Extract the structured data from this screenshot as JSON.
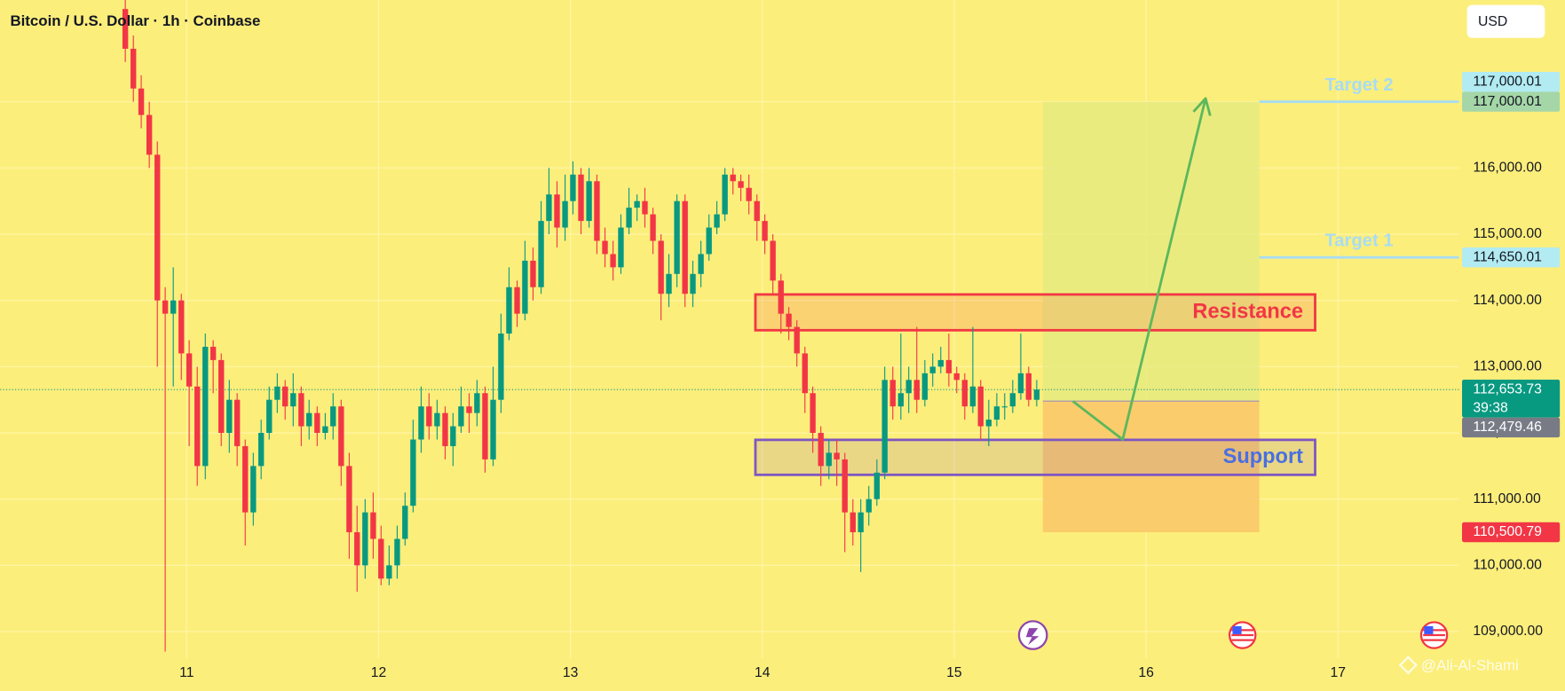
{
  "header": {
    "title": "Bitcoin / U.S. Dollar · 1h · Coinbase",
    "currency_button": "USD",
    "watermark": "@Ali-Al-Shami"
  },
  "chart_data": {
    "type": "candlestick",
    "x": [
      10.68,
      10.722,
      10.763,
      10.805,
      10.847,
      10.888,
      10.93,
      10.972,
      11.013,
      11.055,
      11.097,
      11.138,
      11.18,
      11.222,
      11.263,
      11.305,
      11.347,
      11.388,
      11.43,
      11.472,
      11.513,
      11.555,
      11.597,
      11.638,
      11.68,
      11.722,
      11.763,
      11.805,
      11.847,
      11.888,
      11.93,
      11.972,
      12.013,
      12.055,
      12.097,
      12.138,
      12.18,
      12.222,
      12.263,
      12.305,
      12.347,
      12.388,
      12.43,
      12.472,
      12.513,
      12.555,
      12.597,
      12.638,
      12.68,
      12.722,
      12.763,
      12.805,
      12.847,
      12.888,
      12.93,
      12.972,
      13.013,
      13.055,
      13.097,
      13.138,
      13.18,
      13.222,
      13.263,
      13.305,
      13.347,
      13.388,
      13.43,
      13.472,
      13.513,
      13.555,
      13.597,
      13.638,
      13.68,
      13.722,
      13.763,
      13.805,
      13.847,
      13.888,
      13.93,
      13.972,
      14.013,
      14.055,
      14.097,
      14.138,
      14.18,
      14.222,
      14.263,
      14.305,
      14.347,
      14.388,
      14.43,
      14.472,
      14.513,
      14.555,
      14.597,
      14.638,
      14.68,
      14.722,
      14.763,
      14.805,
      14.847,
      14.888,
      14.93,
      14.972,
      15.013,
      15.055,
      15.097,
      15.138,
      15.18,
      15.222,
      15.263,
      15.305,
      15.347,
      15.388,
      15.43
    ],
    "open": [
      118400,
      117800,
      117200,
      116800,
      116200,
      114000,
      113800,
      114000,
      113200,
      112700,
      111500,
      113300,
      113100,
      112000,
      112500,
      111800,
      110800,
      111500,
      112000,
      112500,
      112700,
      112400,
      112600,
      112100,
      112300,
      112000,
      112100,
      112400,
      111500,
      110500,
      110000,
      110800,
      110400,
      109800,
      110000,
      110400,
      110900,
      111900,
      112400,
      112100,
      112300,
      111800,
      112100,
      112400,
      112300,
      112600,
      111600,
      112500,
      113500,
      114200,
      113800,
      114600,
      114200,
      115200,
      115600,
      115100,
      115500,
      115900,
      115200,
      115800,
      114900,
      114700,
      114500,
      115100,
      115400,
      115500,
      115300,
      114900,
      114100,
      114400,
      115500,
      114100,
      114400,
      114700,
      115100,
      115300,
      115900,
      115800,
      115700,
      115500,
      115200,
      114900,
      114300,
      113800,
      113600,
      113200,
      112600,
      112000,
      111500,
      111700,
      111600,
      110800,
      110500,
      110800,
      111000,
      111400,
      112800,
      112400,
      112600,
      112800,
      112500,
      112900,
      113000,
      113100,
      112900,
      112800,
      112400,
      112700,
      112100,
      112200,
      112400,
      112400,
      112600,
      112900,
      112500
    ],
    "high": [
      118600,
      118000,
      117400,
      117000,
      116400,
      114200,
      114500,
      114100,
      113400,
      113000,
      113500,
      113400,
      113200,
      112800,
      112600,
      111900,
      111700,
      112200,
      112700,
      112900,
      112800,
      112900,
      112700,
      112500,
      112400,
      112300,
      112600,
      112500,
      111700,
      110900,
      111000,
      111100,
      110600,
      110300,
      110600,
      111100,
      112200,
      112700,
      112600,
      112500,
      112400,
      112300,
      112700,
      112600,
      112800,
      112700,
      113000,
      113800,
      114500,
      114300,
      114900,
      114800,
      115500,
      116000,
      115800,
      115900,
      116100,
      116000,
      116000,
      115900,
      115100,
      114900,
      115300,
      115700,
      115600,
      115700,
      115400,
      115000,
      114700,
      115600,
      115600,
      114600,
      114900,
      115300,
      115500,
      116000,
      116000,
      115900,
      115900,
      115600,
      115300,
      115000,
      114400,
      113900,
      113700,
      113300,
      112700,
      112100,
      111900,
      111900,
      111700,
      111000,
      111000,
      111200,
      111600,
      113000,
      113000,
      113500,
      113000,
      113600,
      113100,
      113200,
      113300,
      113500,
      113000,
      112900,
      113600,
      112800,
      112500,
      112600,
      112600,
      112800,
      113500,
      113000,
      112800
    ],
    "low": [
      117600,
      117000,
      116600,
      116000,
      113000,
      108700,
      112700,
      112800,
      111800,
      111200,
      111300,
      112600,
      111800,
      111700,
      111500,
      110300,
      110600,
      111300,
      111900,
      112300,
      112200,
      112100,
      111800,
      111900,
      111800,
      111900,
      111900,
      111200,
      110100,
      109600,
      109800,
      110100,
      109700,
      109700,
      109800,
      110300,
      110800,
      111700,
      111900,
      111900,
      111600,
      111500,
      112000,
      112000,
      112100,
      111400,
      111500,
      112300,
      113400,
      113600,
      113700,
      114000,
      114100,
      115000,
      114800,
      114900,
      115300,
      115000,
      115100,
      114700,
      114500,
      114300,
      114400,
      115000,
      115200,
      115100,
      114700,
      113700,
      113900,
      114200,
      113900,
      113900,
      114200,
      114600,
      115000,
      115200,
      115600,
      115500,
      115300,
      114900,
      114700,
      114100,
      113500,
      113400,
      113000,
      112300,
      111700,
      111200,
      111300,
      111200,
      110200,
      110300,
      109900,
      110600,
      110900,
      111300,
      112200,
      112200,
      112300,
      112300,
      112400,
      112700,
      112900,
      112700,
      112600,
      112200,
      112300,
      111900,
      111800,
      112100,
      112200,
      112300,
      112500,
      112400,
      112400
    ],
    "close": [
      117800,
      117200,
      116800,
      116200,
      114000,
      113800,
      114000,
      113200,
      112700,
      111500,
      113300,
      113100,
      112000,
      112500,
      111800,
      110800,
      111500,
      112000,
      112500,
      112700,
      112400,
      112600,
      112100,
      112300,
      112000,
      112100,
      112400,
      111500,
      110500,
      110000,
      110800,
      110400,
      109800,
      110000,
      110400,
      110900,
      111900,
      112400,
      112100,
      112300,
      111800,
      112100,
      112400,
      112300,
      112600,
      111600,
      112500,
      113500,
      114200,
      113800,
      114600,
      114200,
      115200,
      115600,
      115100,
      115500,
      115900,
      115200,
      115800,
      114900,
      114700,
      114500,
      115100,
      115400,
      115500,
      115300,
      114900,
      114100,
      114400,
      115500,
      114100,
      114400,
      114700,
      115100,
      115300,
      115900,
      115800,
      115700,
      115500,
      115200,
      114900,
      114300,
      113800,
      113600,
      113200,
      112600,
      112000,
      111500,
      111700,
      111600,
      110800,
      110500,
      110800,
      111000,
      111400,
      112800,
      112400,
      112600,
      112800,
      112500,
      112900,
      113000,
      113100,
      112900,
      112800,
      112400,
      112700,
      112100,
      112200,
      112400,
      112400,
      112600,
      112900,
      112500,
      112653.73
    ],
    "up_color": "#089981",
    "down_color": "#f23645",
    "xlim": [
      10.028,
      17.631
    ],
    "xticks": [
      11,
      12,
      13,
      14,
      15,
      16,
      17
    ],
    "ylim": [
      108600,
      118536
    ],
    "yticks": [
      {
        "value": 109000,
        "label": "109,000.00"
      },
      {
        "value": 110000,
        "label": "110,000.00"
      },
      {
        "value": 111000,
        "label": "111,000.00"
      },
      {
        "value": 112000,
        "label": "112,000.00"
      },
      {
        "value": 113000,
        "label": "113,000.00"
      },
      {
        "value": 114000,
        "label": "114,000.00"
      },
      {
        "value": 115000,
        "label": "115,000.00"
      },
      {
        "value": 116000,
        "label": "116,000.00"
      },
      {
        "value": 117000,
        "label": "117,000.00"
      }
    ],
    "grid": true,
    "zones": [
      {
        "label": "Resistance",
        "x": [
          13.964,
          16.881
        ],
        "y": [
          113550,
          114090
        ],
        "color": "#f23645",
        "text_color": "#f23645"
      },
      {
        "label": "Support",
        "x": [
          13.964,
          16.881
        ],
        "y": [
          111367,
          111895
        ],
        "color": "#7e57c2",
        "text_color": "#4a6fe0"
      }
    ],
    "position": {
      "x": [
        15.462,
        16.59
      ],
      "entry": 112479.46,
      "target": 117000.01,
      "stop": 110500.79,
      "profit_color": "#e6ea80",
      "loss_color": "#fbc86a"
    },
    "targets": [
      {
        "label": "Target 2",
        "value": 117000.01,
        "x": 16.59,
        "color": "#a8dcf2"
      },
      {
        "label": "Target 1",
        "value": 114650.01,
        "x": 16.59,
        "color": "#a8dcf2"
      }
    ],
    "arrow": {
      "x": [
        15.618,
        15.878,
        16.31
      ],
      "y": [
        112479,
        111900,
        117050
      ],
      "color": "#5cb85c"
    },
    "price_tags": [
      {
        "value": 117000.01,
        "label": "117,000.01",
        "color": "#a5d6a7",
        "text_color": "#131722"
      },
      {
        "value": 117000.01,
        "label": "117,000.01",
        "color": "#b2ebf2",
        "text_color": "#131722"
      },
      {
        "value": 114650.01,
        "label": "114,650.01",
        "color": "#b2ebf2",
        "text_color": "#131722"
      },
      {
        "value": 112653.73,
        "label": "112,653.73",
        "color": "#089981",
        "text_color": "#ffffff",
        "countdown": "39:38"
      },
      {
        "value": 112479.46,
        "label": "112,479.46",
        "color": "#787b86",
        "text_color": "#ffffff"
      },
      {
        "value": 110500.79,
        "label": "110,500.79",
        "color": "#f23645",
        "text_color": "#ffffff"
      }
    ]
  }
}
